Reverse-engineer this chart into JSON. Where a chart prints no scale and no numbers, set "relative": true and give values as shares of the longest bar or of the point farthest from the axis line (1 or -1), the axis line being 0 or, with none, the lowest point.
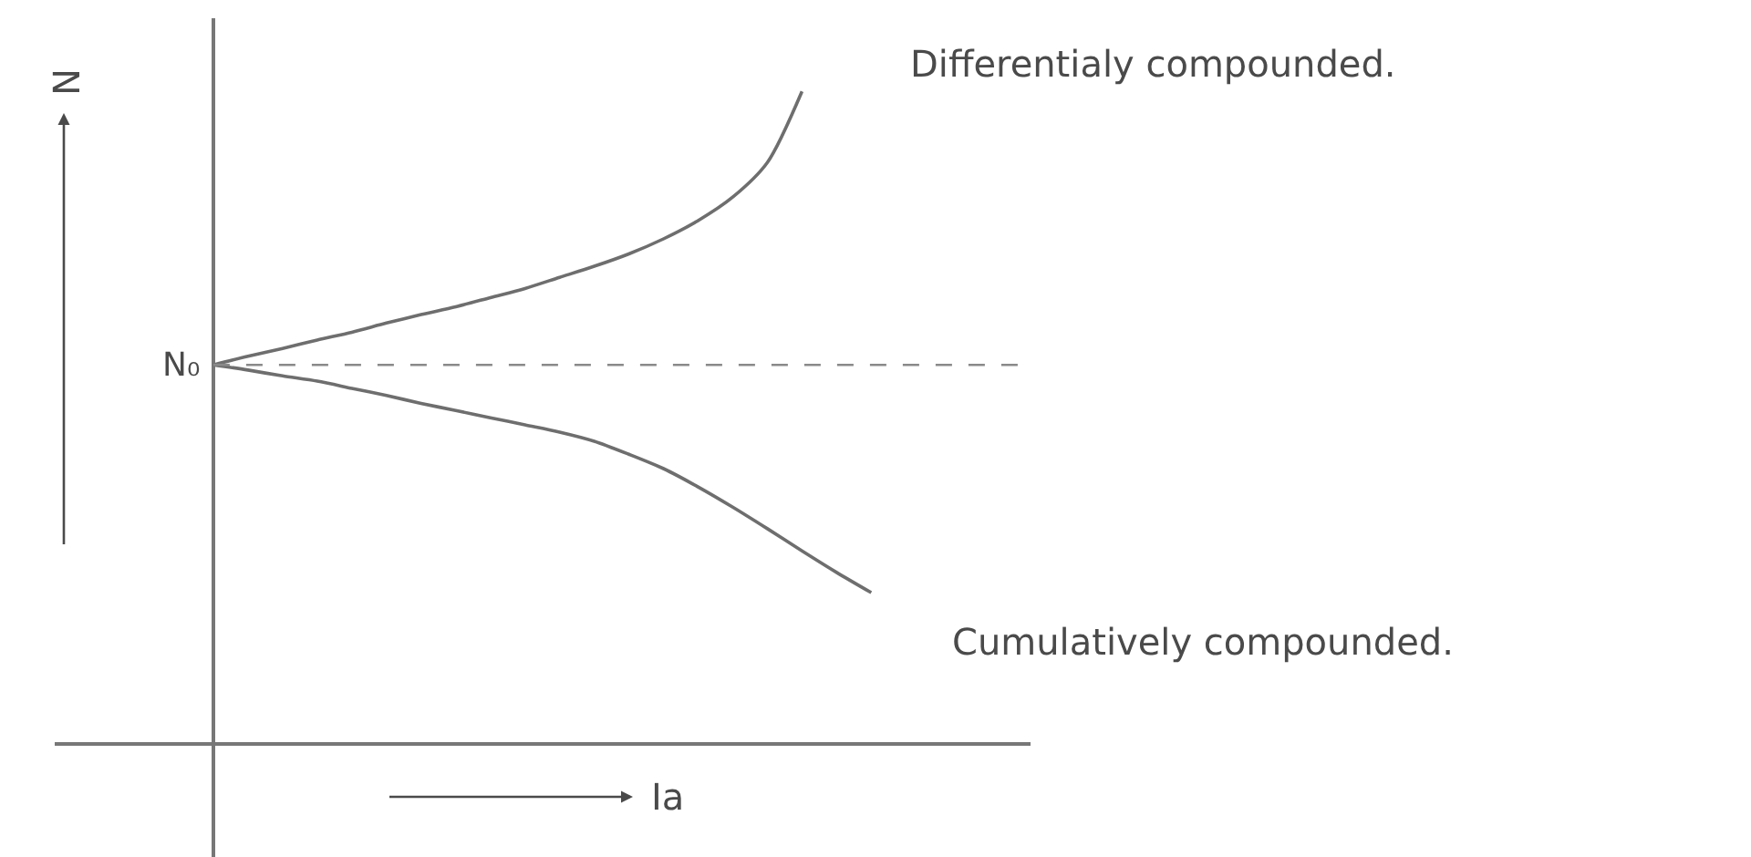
{
  "chart_data": {
    "type": "line",
    "relative": true,
    "xlabel": "Ia",
    "ylabel": "N",
    "categories": [
      null,
      null,
      null,
      null,
      null,
      null,
      null,
      null,
      null,
      null,
      null,
      null,
      null,
      null,
      null,
      null,
      null,
      null,
      null,
      null,
      null,
      null,
      null,
      null
    ],
    "series": [
      {
        "name": "Differentialy compounded.",
        "color": "#6e6e6e",
        "values": [
          0.581,
          0.594,
          0.606,
          0.619,
          0.631,
          0.645,
          0.658,
          0.67,
          0.684,
          0.698,
          0.715,
          0.732,
          0.751,
          0.774,
          0.802,
          0.838,
          0.891,
          1,
          null,
          null,
          null,
          null,
          null,
          null
        ]
      },
      {
        "name": "Cumulatively compounded.",
        "color": "#6e6e6e",
        "values": [
          0.581,
          0.573,
          0.564,
          0.556,
          0.545,
          0.534,
          0.522,
          0.511,
          0.5,
          0.489,
          0.478,
          0.464,
          0.444,
          0.422,
          0.394,
          0.363,
          0.33,
          0.296,
          0.263,
          0.232,
          null,
          null,
          null,
          null
        ]
      }
    ],
    "ref_lines": [
      {
        "axis": "y",
        "value": 0.581,
        "label": "N₀",
        "color": "#8a8a8a",
        "line_style": "dashed"
      }
    ],
    "line_style": "solid"
  }
}
